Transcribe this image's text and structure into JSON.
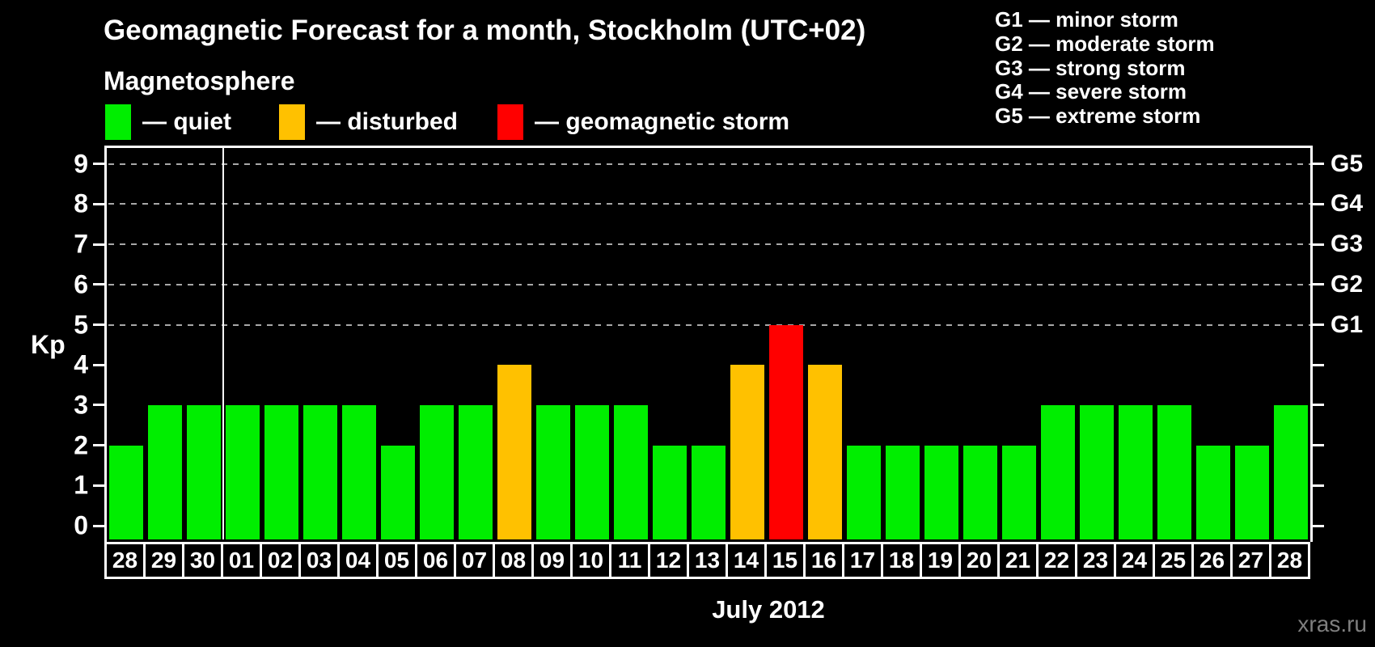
{
  "title": "Geomagnetic Forecast for a month, Stockholm (UTC+02)",
  "subtitle": "Magnetosphere",
  "legend": {
    "items": [
      {
        "key": "quiet",
        "label": "— quiet",
        "color": "#00ee00"
      },
      {
        "key": "disturbed",
        "label": "— disturbed",
        "color": "#ffc100"
      },
      {
        "key": "storm",
        "label": "— geomagnetic storm",
        "color": "#ff0000"
      }
    ]
  },
  "g_scale_legend": [
    "G1 — minor storm",
    "G2 — moderate storm",
    "G3 — strong storm",
    "G4 — severe storm",
    "G5 — extreme storm"
  ],
  "watermark": "xras.ru",
  "chart_data": {
    "type": "bar",
    "title": "Geomagnetic Forecast for a month, Stockholm (UTC+02)",
    "ylabel": "Kp",
    "xlabel": "July 2012",
    "ylim": [
      0,
      9
    ],
    "yticks_left": [
      0,
      1,
      2,
      3,
      4,
      5,
      6,
      7,
      8,
      9
    ],
    "yticks_right": [
      {
        "kp": 5,
        "label": "G1"
      },
      {
        "kp": 6,
        "label": "G2"
      },
      {
        "kp": 7,
        "label": "G3"
      },
      {
        "kp": 8,
        "label": "G4"
      },
      {
        "kp": 9,
        "label": "G5"
      }
    ],
    "grid": "horizontal dashed lines at Kp 5–9 (G1–G5)",
    "legend_position": "top",
    "month_separator_after_index": 2,
    "status_colors": {
      "quiet": "#00ee00",
      "disturbed": "#ffc100",
      "storm": "#ff0000"
    },
    "days": [
      {
        "label": "28",
        "kp": 2,
        "status": "quiet"
      },
      {
        "label": "29",
        "kp": 3,
        "status": "quiet"
      },
      {
        "label": "30",
        "kp": 3,
        "status": "quiet"
      },
      {
        "label": "01",
        "kp": 3,
        "status": "quiet"
      },
      {
        "label": "02",
        "kp": 3,
        "status": "quiet"
      },
      {
        "label": "03",
        "kp": 3,
        "status": "quiet"
      },
      {
        "label": "04",
        "kp": 3,
        "status": "quiet"
      },
      {
        "label": "05",
        "kp": 2,
        "status": "quiet"
      },
      {
        "label": "06",
        "kp": 3,
        "status": "quiet"
      },
      {
        "label": "07",
        "kp": 3,
        "status": "quiet"
      },
      {
        "label": "08",
        "kp": 4,
        "status": "disturbed"
      },
      {
        "label": "09",
        "kp": 3,
        "status": "quiet"
      },
      {
        "label": "10",
        "kp": 3,
        "status": "quiet"
      },
      {
        "label": "11",
        "kp": 3,
        "status": "quiet"
      },
      {
        "label": "12",
        "kp": 2,
        "status": "quiet"
      },
      {
        "label": "13",
        "kp": 2,
        "status": "quiet"
      },
      {
        "label": "14",
        "kp": 4,
        "status": "disturbed"
      },
      {
        "label": "15",
        "kp": 5,
        "status": "storm"
      },
      {
        "label": "16",
        "kp": 4,
        "status": "disturbed"
      },
      {
        "label": "17",
        "kp": 2,
        "status": "quiet"
      },
      {
        "label": "18",
        "kp": 2,
        "status": "quiet"
      },
      {
        "label": "19",
        "kp": 2,
        "status": "quiet"
      },
      {
        "label": "20",
        "kp": 2,
        "status": "quiet"
      },
      {
        "label": "21",
        "kp": 2,
        "status": "quiet"
      },
      {
        "label": "22",
        "kp": 3,
        "status": "quiet"
      },
      {
        "label": "23",
        "kp": 3,
        "status": "quiet"
      },
      {
        "label": "24",
        "kp": 3,
        "status": "quiet"
      },
      {
        "label": "25",
        "kp": 3,
        "status": "quiet"
      },
      {
        "label": "26",
        "kp": 2,
        "status": "quiet"
      },
      {
        "label": "27",
        "kp": 2,
        "status": "quiet"
      },
      {
        "label": "28",
        "kp": 3,
        "status": "quiet"
      }
    ]
  }
}
